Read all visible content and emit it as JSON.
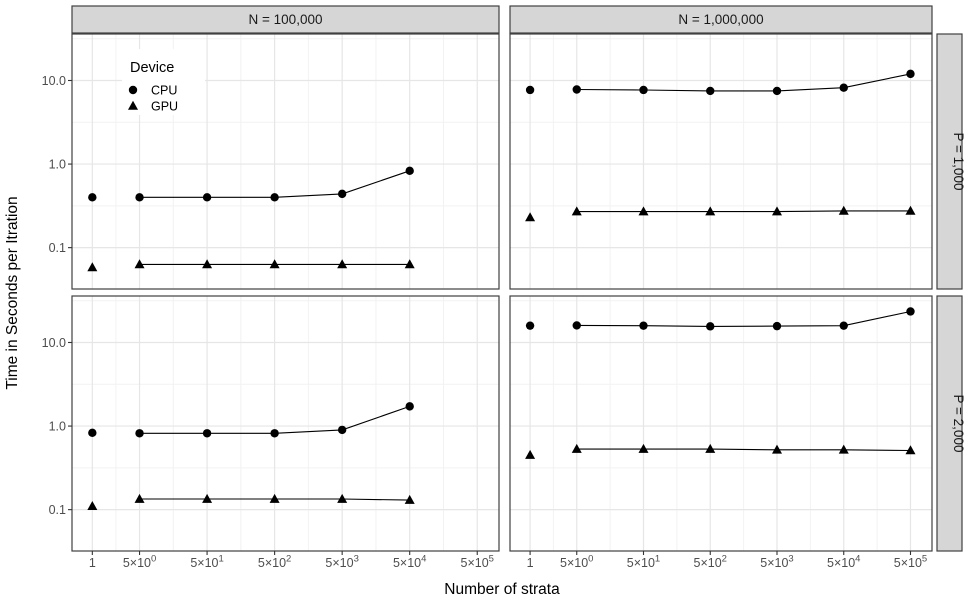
{
  "figure": {
    "kind": "faceted scatter-line chart (ggplot2 theme_bw style)"
  },
  "axes": {
    "x_title": "Number of strata",
    "y_title": "Time in Seconds per Itration",
    "x_ticks": [
      {
        "value": 1,
        "base": "1",
        "sup": ""
      },
      {
        "value": 5,
        "base": "5×10",
        "sup": "0"
      },
      {
        "value": 50,
        "base": "5×10",
        "sup": "1"
      },
      {
        "value": 500,
        "base": "5×10",
        "sup": "2"
      },
      {
        "value": 5000,
        "base": "5×10",
        "sup": "3"
      },
      {
        "value": 50000,
        "base": "5×10",
        "sup": "4"
      },
      {
        "value": 500000,
        "base": "5×10",
        "sup": "5"
      }
    ],
    "y_ticks": [
      {
        "value": 10,
        "label": "10.0"
      },
      {
        "value": 1,
        "label": "1.0"
      },
      {
        "value": 0.1,
        "label": "0.1"
      }
    ]
  },
  "facets": {
    "cols": [
      "N = 100,000",
      "N = 1,000,000"
    ],
    "rows": [
      "P = 1,000",
      "P = 2,000"
    ]
  },
  "legend": {
    "title": "Device",
    "entries": [
      {
        "label": "CPU",
        "marker": "circle"
      },
      {
        "label": "GPU",
        "marker": "triangle"
      }
    ]
  },
  "colors": {
    "series": "#000000",
    "strip_bg": "#d6d6d6",
    "strip_border": "#404040",
    "panel_border": "#404040",
    "panel_bg": "#ffffff",
    "grid_major": "#e6e6e6",
    "grid_minor": "#f2f2f2",
    "tick_mark": "#333333",
    "tick_label": "#4d4d4d",
    "strip_text": "#1a1a1a",
    "legend_bg": "#ffffff"
  },
  "chart_data": {
    "type": "line",
    "x_scale": "log10",
    "y_scale": "log10",
    "xlabel": "Number of strata",
    "ylabel": "Time in Seconds per Itration",
    "xlim": [
      0.5,
      1050000
    ],
    "ylim": [
      0.032,
      36
    ],
    "grid": "major+minor",
    "legend_position": "inside top-left panel",
    "line_connects_from_x": 5,
    "panels": [
      {
        "col": "N = 100,000",
        "row": "P = 1,000",
        "series": [
          {
            "name": "CPU",
            "marker": "circle",
            "x": [
              1,
              5,
              50,
              500,
              5000,
              50000
            ],
            "y": [
              0.4,
              0.4,
              0.4,
              0.4,
              0.44,
              0.83
            ]
          },
          {
            "name": "GPU",
            "marker": "triangle",
            "x": [
              1,
              5,
              50,
              500,
              5000,
              50000
            ],
            "y": [
              0.058,
              0.063,
              0.063,
              0.063,
              0.063,
              0.063
            ]
          }
        ]
      },
      {
        "col": "N = 1,000,000",
        "row": "P = 1,000",
        "series": [
          {
            "name": "CPU",
            "marker": "circle",
            "x": [
              1,
              5,
              50,
              500,
              5000,
              50000,
              500000
            ],
            "y": [
              7.7,
              7.8,
              7.7,
              7.5,
              7.5,
              8.2,
              12.0
            ]
          },
          {
            "name": "GPU",
            "marker": "triangle",
            "x": [
              1,
              5,
              50,
              500,
              5000,
              50000,
              500000
            ],
            "y": [
              0.23,
              0.27,
              0.27,
              0.27,
              0.27,
              0.275,
              0.275
            ]
          }
        ]
      },
      {
        "col": "N = 100,000",
        "row": "P = 2,000",
        "series": [
          {
            "name": "CPU",
            "marker": "circle",
            "x": [
              1,
              5,
              50,
              500,
              5000,
              50000
            ],
            "y": [
              0.83,
              0.82,
              0.82,
              0.82,
              0.9,
              1.72
            ]
          },
          {
            "name": "GPU",
            "marker": "triangle",
            "x": [
              1,
              5,
              50,
              500,
              5000,
              50000
            ],
            "y": [
              0.11,
              0.134,
              0.134,
              0.134,
              0.134,
              0.13
            ]
          }
        ]
      },
      {
        "col": "N = 1,000,000",
        "row": "P = 2,000",
        "series": [
          {
            "name": "CPU",
            "marker": "circle",
            "x": [
              1,
              5,
              50,
              500,
              5000,
              50000,
              500000
            ],
            "y": [
              15.9,
              16.0,
              15.9,
              15.6,
              15.7,
              15.9,
              23.5
            ]
          },
          {
            "name": "GPU",
            "marker": "triangle",
            "x": [
              1,
              5,
              50,
              500,
              5000,
              50000,
              500000
            ],
            "y": [
              0.45,
              0.53,
              0.53,
              0.53,
              0.52,
              0.52,
              0.51
            ]
          }
        ]
      }
    ]
  }
}
